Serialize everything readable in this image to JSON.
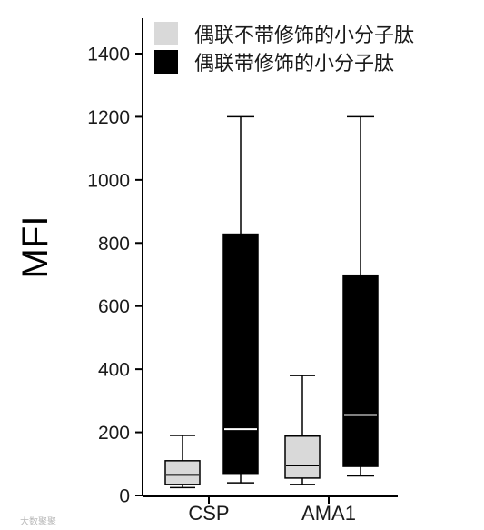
{
  "chart_data": {
    "type": "box",
    "ylabel": "MFI",
    "ylim": [
      0,
      1500
    ],
    "yticks": [
      0,
      200,
      400,
      600,
      800,
      1000,
      1200,
      1400
    ],
    "categories": [
      "CSP",
      "AMA1"
    ],
    "series": [
      {
        "name": "偶联不带修饰的小分子肽",
        "color": "#d9d9d9",
        "median_color": "#000000",
        "boxes": [
          {
            "min": 25,
            "q1": 35,
            "median": 65,
            "q3": 110,
            "max": 190
          },
          {
            "min": 35,
            "q1": 55,
            "median": 95,
            "q3": 188,
            "max": 380
          }
        ]
      },
      {
        "name": "偶联带修饰的小分子肽",
        "color": "#000000",
        "median_color": "#ffffff",
        "boxes": [
          {
            "min": 40,
            "q1": 70,
            "median": 210,
            "q3": 828,
            "max": 1200
          },
          {
            "min": 62,
            "q1": 92,
            "median": 255,
            "q3": 698,
            "max": 1200
          }
        ]
      }
    ],
    "legend_position": "top"
  },
  "watermark": "大数聚聚"
}
